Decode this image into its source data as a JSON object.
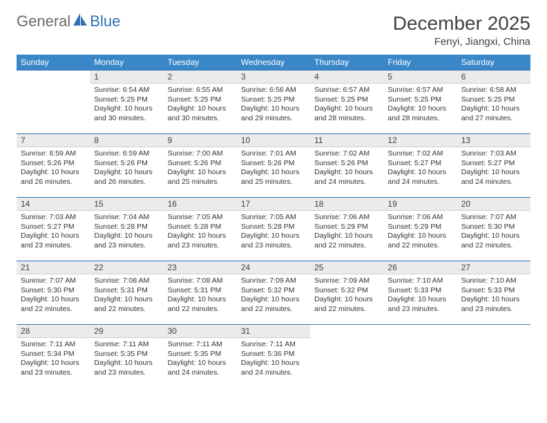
{
  "logo": {
    "text1": "General",
    "text2": "Blue"
  },
  "title": "December 2025",
  "location": "Fenyi, Jiangxi, China",
  "colors": {
    "header_bg": "#3a87c8",
    "header_text": "#ffffff",
    "daynum_bg": "#ebebeb",
    "daynum_border_top": "#2d72b5",
    "daynum_border_bottom": "#cfcfcf",
    "body_text": "#333333",
    "title_text": "#414141"
  },
  "day_names": [
    "Sunday",
    "Monday",
    "Tuesday",
    "Wednesday",
    "Thursday",
    "Friday",
    "Saturday"
  ],
  "weeks": [
    [
      {
        "n": "",
        "sr": "",
        "ss": "",
        "dl": ""
      },
      {
        "n": "1",
        "sr": "Sunrise: 6:54 AM",
        "ss": "Sunset: 5:25 PM",
        "dl": "Daylight: 10 hours and 30 minutes."
      },
      {
        "n": "2",
        "sr": "Sunrise: 6:55 AM",
        "ss": "Sunset: 5:25 PM",
        "dl": "Daylight: 10 hours and 30 minutes."
      },
      {
        "n": "3",
        "sr": "Sunrise: 6:56 AM",
        "ss": "Sunset: 5:25 PM",
        "dl": "Daylight: 10 hours and 29 minutes."
      },
      {
        "n": "4",
        "sr": "Sunrise: 6:57 AM",
        "ss": "Sunset: 5:25 PM",
        "dl": "Daylight: 10 hours and 28 minutes."
      },
      {
        "n": "5",
        "sr": "Sunrise: 6:57 AM",
        "ss": "Sunset: 5:25 PM",
        "dl": "Daylight: 10 hours and 28 minutes."
      },
      {
        "n": "6",
        "sr": "Sunrise: 6:58 AM",
        "ss": "Sunset: 5:25 PM",
        "dl": "Daylight: 10 hours and 27 minutes."
      }
    ],
    [
      {
        "n": "7",
        "sr": "Sunrise: 6:59 AM",
        "ss": "Sunset: 5:26 PM",
        "dl": "Daylight: 10 hours and 26 minutes."
      },
      {
        "n": "8",
        "sr": "Sunrise: 6:59 AM",
        "ss": "Sunset: 5:26 PM",
        "dl": "Daylight: 10 hours and 26 minutes."
      },
      {
        "n": "9",
        "sr": "Sunrise: 7:00 AM",
        "ss": "Sunset: 5:26 PM",
        "dl": "Daylight: 10 hours and 25 minutes."
      },
      {
        "n": "10",
        "sr": "Sunrise: 7:01 AM",
        "ss": "Sunset: 5:26 PM",
        "dl": "Daylight: 10 hours and 25 minutes."
      },
      {
        "n": "11",
        "sr": "Sunrise: 7:02 AM",
        "ss": "Sunset: 5:26 PM",
        "dl": "Daylight: 10 hours and 24 minutes."
      },
      {
        "n": "12",
        "sr": "Sunrise: 7:02 AM",
        "ss": "Sunset: 5:27 PM",
        "dl": "Daylight: 10 hours and 24 minutes."
      },
      {
        "n": "13",
        "sr": "Sunrise: 7:03 AM",
        "ss": "Sunset: 5:27 PM",
        "dl": "Daylight: 10 hours and 24 minutes."
      }
    ],
    [
      {
        "n": "14",
        "sr": "Sunrise: 7:03 AM",
        "ss": "Sunset: 5:27 PM",
        "dl": "Daylight: 10 hours and 23 minutes."
      },
      {
        "n": "15",
        "sr": "Sunrise: 7:04 AM",
        "ss": "Sunset: 5:28 PM",
        "dl": "Daylight: 10 hours and 23 minutes."
      },
      {
        "n": "16",
        "sr": "Sunrise: 7:05 AM",
        "ss": "Sunset: 5:28 PM",
        "dl": "Daylight: 10 hours and 23 minutes."
      },
      {
        "n": "17",
        "sr": "Sunrise: 7:05 AM",
        "ss": "Sunset: 5:28 PM",
        "dl": "Daylight: 10 hours and 23 minutes."
      },
      {
        "n": "18",
        "sr": "Sunrise: 7:06 AM",
        "ss": "Sunset: 5:29 PM",
        "dl": "Daylight: 10 hours and 22 minutes."
      },
      {
        "n": "19",
        "sr": "Sunrise: 7:06 AM",
        "ss": "Sunset: 5:29 PM",
        "dl": "Daylight: 10 hours and 22 minutes."
      },
      {
        "n": "20",
        "sr": "Sunrise: 7:07 AM",
        "ss": "Sunset: 5:30 PM",
        "dl": "Daylight: 10 hours and 22 minutes."
      }
    ],
    [
      {
        "n": "21",
        "sr": "Sunrise: 7:07 AM",
        "ss": "Sunset: 5:30 PM",
        "dl": "Daylight: 10 hours and 22 minutes."
      },
      {
        "n": "22",
        "sr": "Sunrise: 7:08 AM",
        "ss": "Sunset: 5:31 PM",
        "dl": "Daylight: 10 hours and 22 minutes."
      },
      {
        "n": "23",
        "sr": "Sunrise: 7:08 AM",
        "ss": "Sunset: 5:31 PM",
        "dl": "Daylight: 10 hours and 22 minutes."
      },
      {
        "n": "24",
        "sr": "Sunrise: 7:09 AM",
        "ss": "Sunset: 5:32 PM",
        "dl": "Daylight: 10 hours and 22 minutes."
      },
      {
        "n": "25",
        "sr": "Sunrise: 7:09 AM",
        "ss": "Sunset: 5:32 PM",
        "dl": "Daylight: 10 hours and 22 minutes."
      },
      {
        "n": "26",
        "sr": "Sunrise: 7:10 AM",
        "ss": "Sunset: 5:33 PM",
        "dl": "Daylight: 10 hours and 23 minutes."
      },
      {
        "n": "27",
        "sr": "Sunrise: 7:10 AM",
        "ss": "Sunset: 5:33 PM",
        "dl": "Daylight: 10 hours and 23 minutes."
      }
    ],
    [
      {
        "n": "28",
        "sr": "Sunrise: 7:11 AM",
        "ss": "Sunset: 5:34 PM",
        "dl": "Daylight: 10 hours and 23 minutes."
      },
      {
        "n": "29",
        "sr": "Sunrise: 7:11 AM",
        "ss": "Sunset: 5:35 PM",
        "dl": "Daylight: 10 hours and 23 minutes."
      },
      {
        "n": "30",
        "sr": "Sunrise: 7:11 AM",
        "ss": "Sunset: 5:35 PM",
        "dl": "Daylight: 10 hours and 24 minutes."
      },
      {
        "n": "31",
        "sr": "Sunrise: 7:11 AM",
        "ss": "Sunset: 5:36 PM",
        "dl": "Daylight: 10 hours and 24 minutes."
      },
      {
        "n": "",
        "sr": "",
        "ss": "",
        "dl": ""
      },
      {
        "n": "",
        "sr": "",
        "ss": "",
        "dl": ""
      },
      {
        "n": "",
        "sr": "",
        "ss": "",
        "dl": ""
      }
    ]
  ]
}
